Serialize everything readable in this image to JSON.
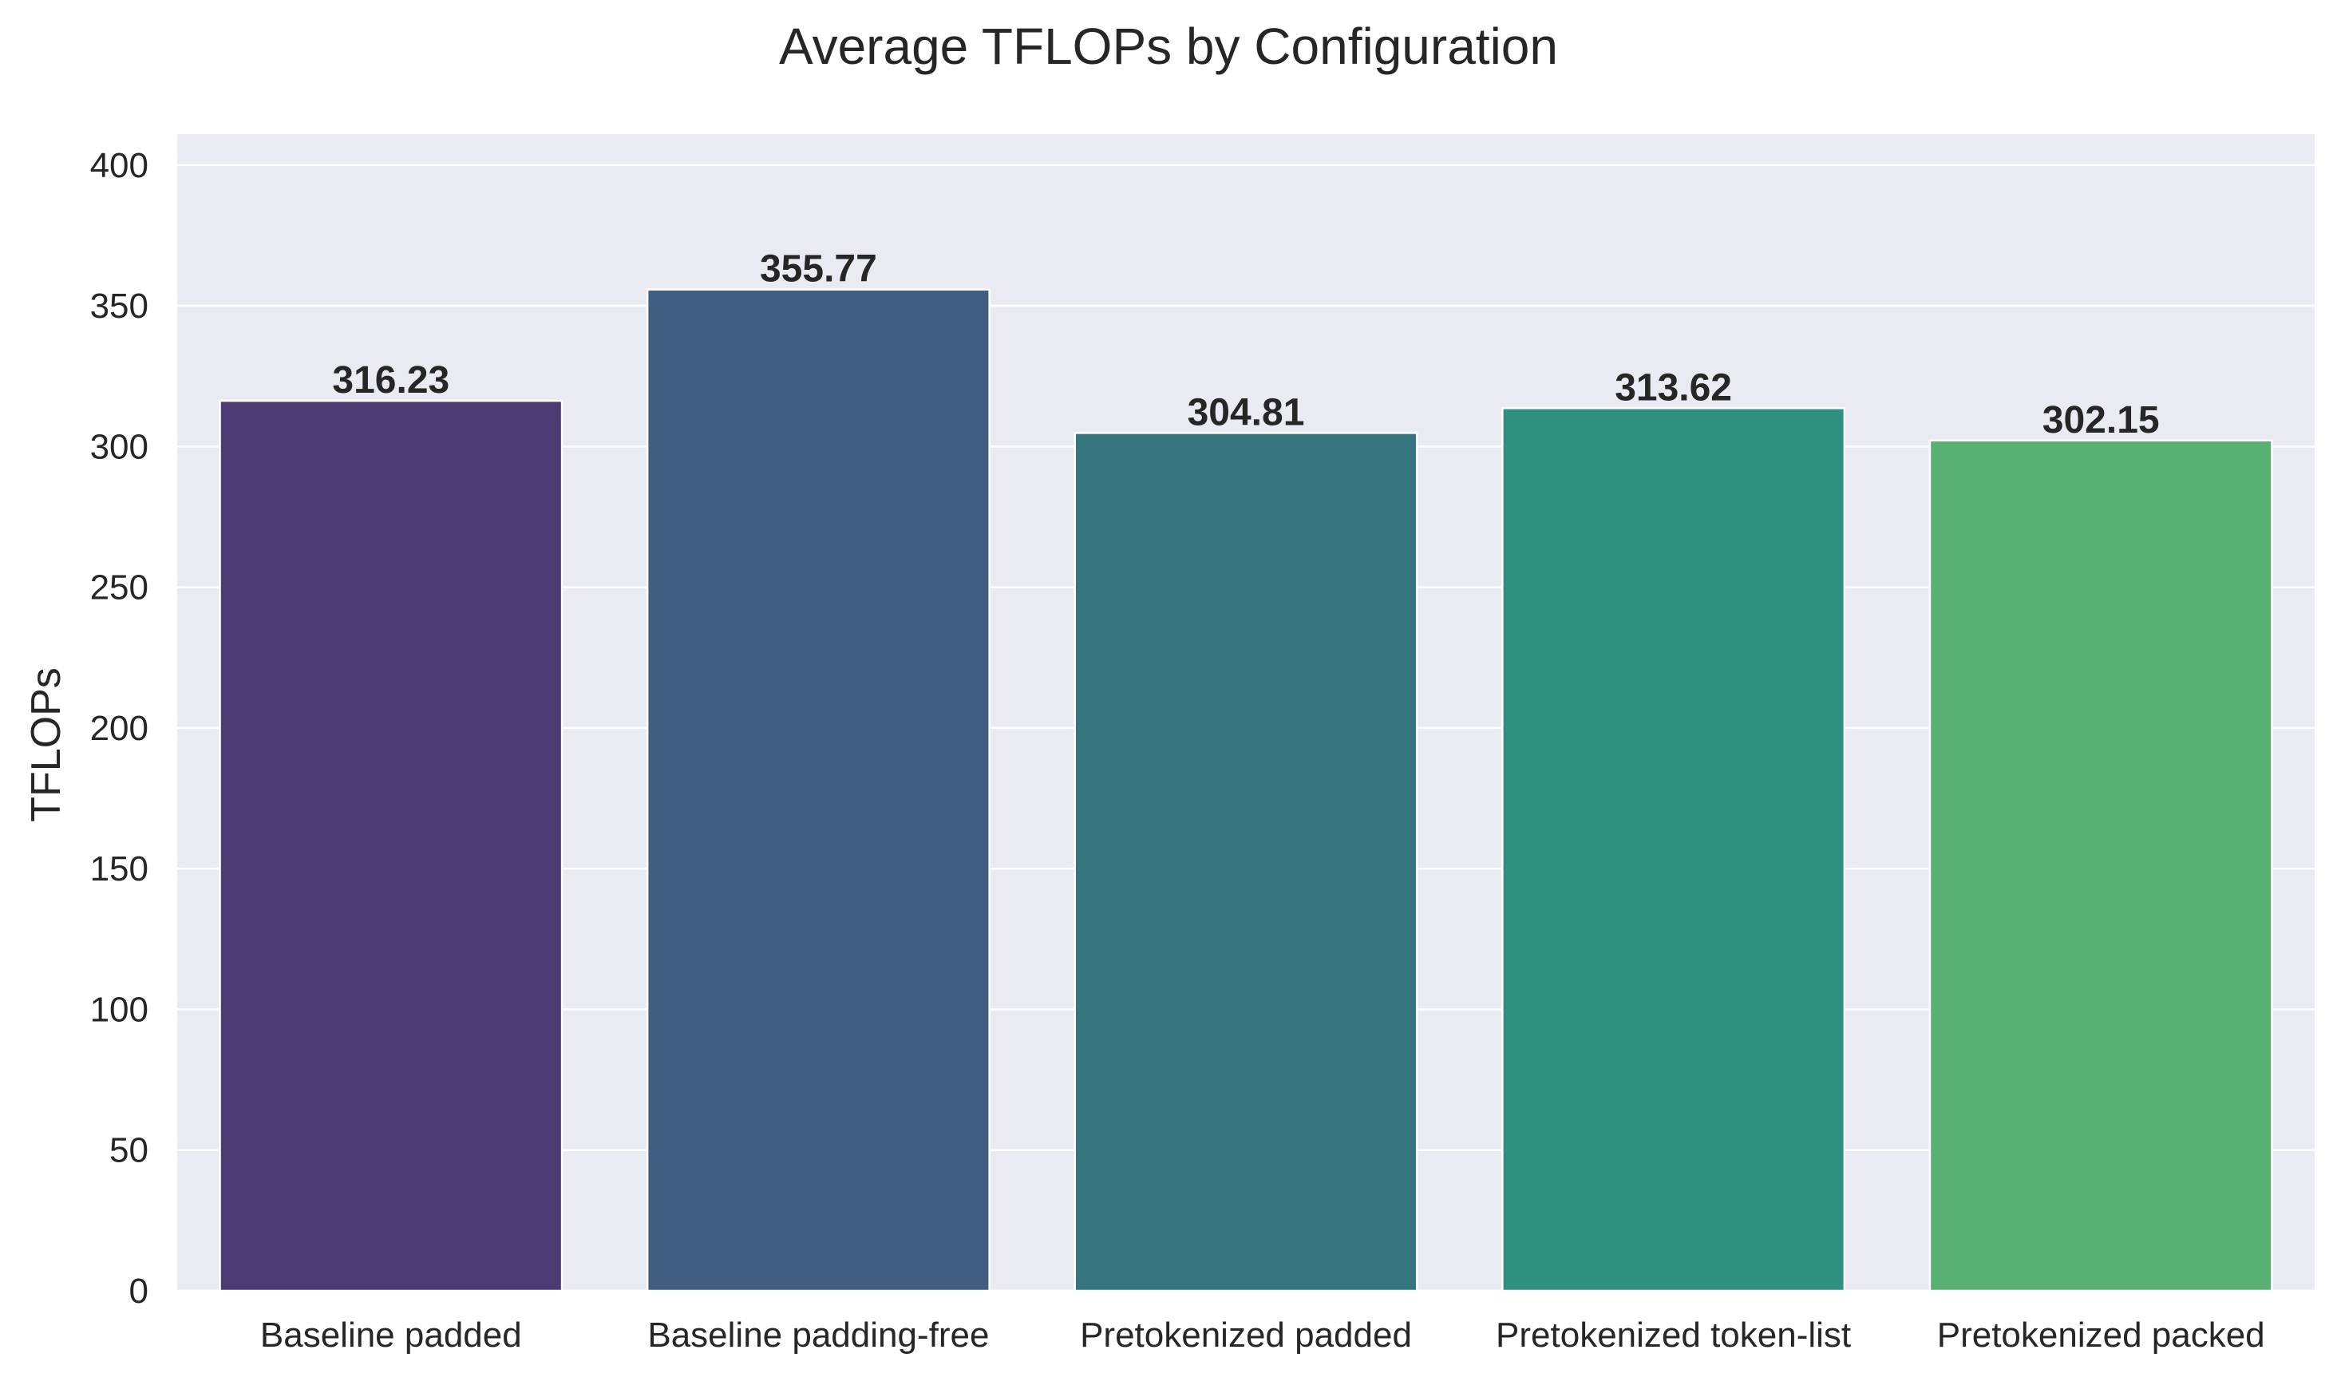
{
  "chart_data": {
    "type": "bar",
    "title": "Average TFLOPs by Configuration",
    "xlabel": "",
    "ylabel": "TFLOPs",
    "categories": [
      "Baseline padded",
      "Baseline padding-free",
      "Pretokenized padded",
      "Pretokenized token-list",
      "Pretokenized packed"
    ],
    "values": [
      316.23,
      355.77,
      304.81,
      313.62,
      302.15
    ],
    "data_labels": [
      "316.23",
      "355.77",
      "304.81",
      "313.62",
      "302.15"
    ],
    "ylim": [
      0,
      411
    ],
    "yticks": [
      0,
      50,
      100,
      150,
      200,
      250,
      300,
      350,
      400
    ],
    "grid": "horizontal",
    "legend": "none",
    "bar_colors": [
      "#4a3b72",
      "#415e81",
      "#34757e",
      "#309080",
      "#58b072"
    ],
    "background_color": "#eaeaf2",
    "grid_color": "#ffffff",
    "text_color": "#262626"
  }
}
